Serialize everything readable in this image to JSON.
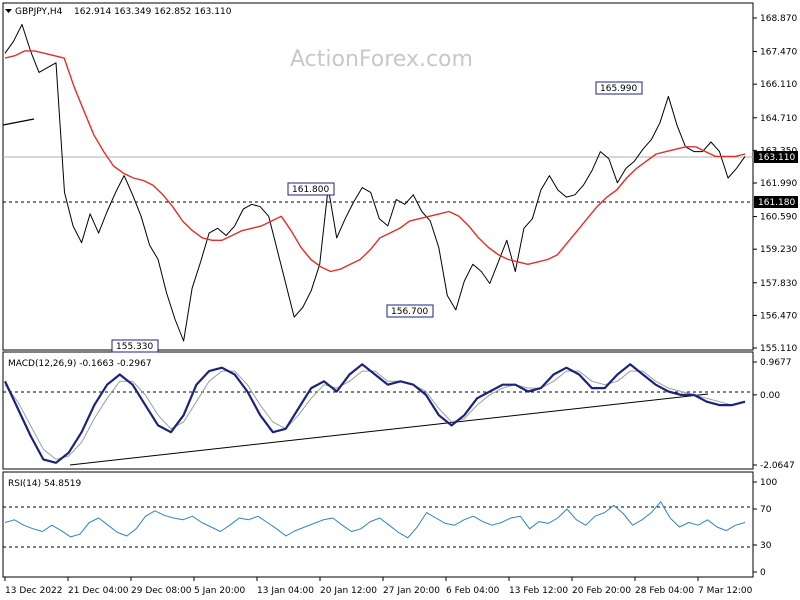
{
  "header": {
    "symbol": "GBPJPY,H4",
    "ohlc": "162.914 163.349 162.852 163.110"
  },
  "watermark": "ActionForex.com",
  "chart_data": [
    {
      "type": "line",
      "name": "price",
      "title": "GBPJPY,H4  162.914 163.349 162.852 163.110",
      "y_ticks": [
        "168.870",
        "167.470",
        "166.110",
        "164.710",
        "163.350",
        "161.990",
        "160.590",
        "159.230",
        "157.830",
        "156.470",
        "155.110"
      ],
      "ylim": [
        155.11,
        168.87
      ],
      "current_price": "163.110",
      "support_level": "161.180",
      "annotations": [
        {
          "text": "155.330",
          "value": 155.33
        },
        {
          "text": "161.800",
          "value": 161.8
        },
        {
          "text": "156.700",
          "value": 156.7
        },
        {
          "text": "165.990",
          "value": 165.99
        }
      ],
      "series": [
        {
          "name": "close",
          "color": "#000000",
          "values": [
            167.4,
            167.9,
            168.6,
            167.5,
            166.6,
            166.8,
            167.0,
            161.6,
            160.2,
            159.5,
            160.7,
            159.9,
            160.8,
            161.6,
            162.3,
            161.5,
            160.6,
            159.4,
            158.8,
            157.4,
            156.3,
            155.4,
            157.6,
            158.7,
            159.9,
            160.1,
            159.8,
            160.2,
            160.9,
            161.1,
            161.0,
            160.6,
            159.2,
            157.8,
            156.4,
            156.8,
            157.5,
            158.6,
            161.8,
            159.7,
            160.5,
            161.2,
            161.8,
            161.6,
            160.5,
            160.2,
            161.3,
            161.1,
            161.5,
            160.8,
            160.4,
            159.3,
            157.3,
            156.7,
            157.9,
            158.6,
            158.3,
            157.8,
            158.7,
            159.6,
            158.3,
            160.1,
            160.5,
            161.7,
            162.3,
            161.7,
            161.4,
            161.5,
            161.9,
            162.5,
            163.3,
            163.0,
            162.0,
            162.6,
            162.9,
            163.4,
            163.8,
            164.5,
            165.6,
            164.4,
            163.5,
            163.3,
            163.3,
            163.7,
            163.3,
            162.2,
            162.6,
            163.1
          ]
        },
        {
          "name": "ma",
          "color": "#e0302a",
          "values": [
            167.2,
            167.3,
            167.5,
            167.5,
            167.4,
            167.3,
            167.2,
            166.0,
            165.0,
            164.0,
            163.3,
            162.7,
            162.4,
            162.2,
            162.1,
            161.9,
            161.5,
            161.0,
            160.4,
            160.0,
            159.7,
            159.6,
            159.6,
            159.8,
            160.0,
            160.1,
            160.2,
            160.4,
            160.6,
            160.0,
            159.3,
            158.8,
            158.5,
            158.3,
            158.4,
            158.6,
            158.8,
            159.2,
            159.7,
            159.9,
            160.1,
            160.4,
            160.5,
            160.6,
            160.7,
            160.8,
            160.6,
            160.2,
            159.7,
            159.3,
            159.0,
            158.8,
            158.7,
            158.6,
            158.7,
            158.8,
            159.0,
            159.5,
            160.0,
            160.5,
            161.0,
            161.4,
            161.7,
            162.2,
            162.6,
            162.9,
            163.2,
            163.3,
            163.4,
            163.5,
            163.5,
            163.3,
            163.1,
            163.1,
            163.1,
            163.2
          ]
        }
      ]
    },
    {
      "type": "line",
      "name": "MACD(12,26,9)",
      "title": "MACD(12,26,9) -0.1663 -0.2967",
      "y_ticks": [
        "0.9677",
        "0.00",
        "-2.0647"
      ],
      "ylim": [
        -2.0647,
        0.9677
      ],
      "series": [
        {
          "name": "macd",
          "color": "#1a237e",
          "values": [
            0.4,
            -0.4,
            -1.2,
            -1.9,
            -2.0,
            -1.7,
            -1.1,
            -0.3,
            0.3,
            0.6,
            0.3,
            -0.3,
            -0.9,
            -1.1,
            -0.6,
            0.3,
            0.7,
            0.8,
            0.6,
            0.1,
            -0.6,
            -1.1,
            -1.0,
            -0.4,
            0.2,
            0.4,
            0.1,
            0.6,
            0.9,
            0.6,
            0.3,
            0.4,
            0.3,
            0.0,
            -0.6,
            -0.9,
            -0.6,
            -0.1,
            0.1,
            0.3,
            0.3,
            0.1,
            0.2,
            0.6,
            0.8,
            0.6,
            0.2,
            0.2,
            0.6,
            0.9,
            0.6,
            0.3,
            0.1,
            0.0,
            0.0,
            -0.2,
            -0.3,
            -0.3,
            -0.2
          ]
        },
        {
          "name": "signal",
          "color": "#9e9e9e",
          "values": [
            0.3,
            -0.2,
            -0.9,
            -1.6,
            -1.9,
            -1.8,
            -1.4,
            -0.7,
            -0.1,
            0.4,
            0.4,
            0.0,
            -0.6,
            -1.0,
            -0.8,
            -0.2,
            0.4,
            0.7,
            0.7,
            0.3,
            -0.3,
            -0.8,
            -1.0,
            -0.6,
            -0.1,
            0.3,
            0.2,
            0.4,
            0.7,
            0.7,
            0.4,
            0.4,
            0.3,
            0.1,
            -0.4,
            -0.8,
            -0.7,
            -0.3,
            0.0,
            0.2,
            0.3,
            0.2,
            0.2,
            0.4,
            0.7,
            0.7,
            0.4,
            0.3,
            0.4,
            0.7,
            0.7,
            0.4,
            0.2,
            0.1,
            0.0,
            -0.1,
            -0.2,
            -0.3,
            -0.2
          ]
        }
      ]
    },
    {
      "type": "line",
      "name": "RSI(14)",
      "title": "RSI(14) 54.8519",
      "y_ticks": [
        "100",
        "70",
        "30",
        "0"
      ],
      "ylim": [
        0,
        100
      ],
      "levels": [
        70,
        30
      ],
      "series": [
        {
          "name": "rsi",
          "color": "#2e86c1",
          "values": [
            55,
            58,
            52,
            48,
            45,
            52,
            46,
            39,
            42,
            55,
            60,
            52,
            44,
            40,
            48,
            62,
            68,
            63,
            60,
            58,
            62,
            55,
            50,
            45,
            52,
            60,
            58,
            62,
            55,
            48,
            40,
            46,
            50,
            54,
            58,
            60,
            52,
            45,
            48,
            56,
            60,
            52,
            44,
            38,
            50,
            66,
            60,
            54,
            52,
            58,
            62,
            56,
            52,
            55,
            60,
            62,
            48,
            56,
            54,
            60,
            70,
            58,
            52,
            62,
            66,
            74,
            65,
            52,
            58,
            66,
            78,
            60,
            50,
            55,
            52,
            58,
            50,
            46,
            52,
            55
          ]
        }
      ]
    }
  ],
  "x_axis": {
    "ticks": [
      "13 Dec 2022",
      "21 Dec 04:00",
      "29 Dec 08:00",
      "5 Jan 20:00",
      "13 Jan 04:00",
      "20 Jan 12:00",
      "27 Jan 20:00",
      "6 Feb 04:00",
      "13 Feb 12:00",
      "20 Feb 20:00",
      "28 Feb 04:00",
      "7 Mar 12:00"
    ]
  }
}
